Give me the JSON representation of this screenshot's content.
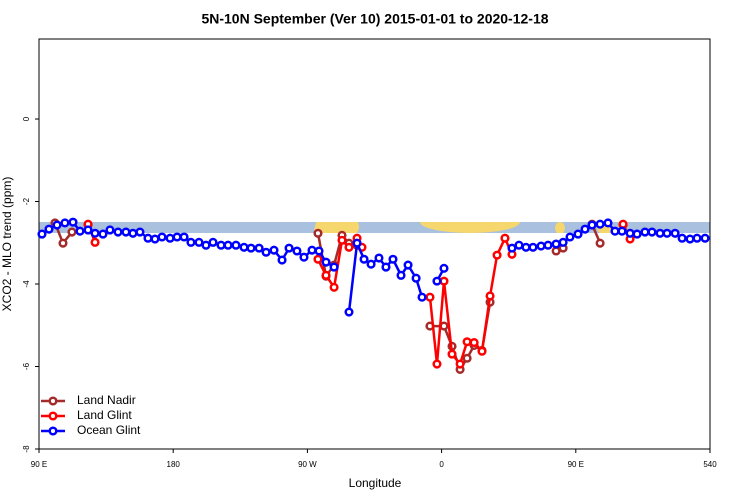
{
  "chart_data": {
    "type": "line",
    "title": "5N-10N September (Ver 10)   2015-01-01 to 2020-12-18",
    "x_label": "Longitude",
    "y_label": "XCO2 - MLO trend (ppm)",
    "xlim": [
      90,
      540
    ],
    "ylim": [
      -8,
      1.94
    ],
    "xticks": [
      {
        "value": 90,
        "label": "90 E"
      },
      180,
      {
        "value": 270,
        "label": "90 W"
      },
      {
        "value": 360,
        "label": "0"
      },
      {
        "value": 450,
        "label": "90 E"
      },
      540
    ],
    "yticks": [
      0,
      -2,
      -4,
      -6,
      -8
    ],
    "legend": "bottomleft",
    "series": [
      {
        "name": "Land Nadir",
        "color": "#a52a2a",
        "x": [
          100.7,
          106.1,
          112.1,
          115,
          122.9,
          200,
          277.1,
          282.5,
          287.9,
          293.2,
          297.9,
          303.3,
          330,
          352.2,
          361.6,
          367.0,
          372.4,
          377.1,
          381.8,
          387.1,
          392.5,
          420,
          436.8,
          441.5,
          450,
          460.9,
          466.3,
          470,
          481.7
        ],
        "values": [
          -2.52,
          -3.01,
          -2.74,
          null,
          -2.57,
          null,
          -2.77,
          -3.81,
          -3.54,
          -2.82,
          -3.01,
          -3.06,
          null,
          -5.02,
          -5.02,
          -5.51,
          -6.07,
          -5.8,
          -5.49,
          -5.61,
          -4.44,
          null,
          -3.2,
          -3.13,
          null,
          -2.55,
          -3.01,
          null,
          -2.57
        ]
      },
      {
        "name": "Land Glint",
        "color": "#ff0000",
        "x": [
          122.9,
          127.6,
          200,
          277.1,
          282.5,
          287.9,
          293.2,
          297.9,
          303.3,
          306.6,
          330,
          352.2,
          356.9,
          361.6,
          367.0,
          372.4,
          377.1,
          381.8,
          387.1,
          392.5,
          397.2,
          402.5,
          407.2,
          450,
          481.7,
          486.4
        ],
        "values": [
          -2.55,
          -2.99,
          null,
          -3.4,
          -3.79,
          -4.08,
          -2.94,
          -3.11,
          -2.89,
          -3.11,
          null,
          -4.32,
          -5.94,
          -3.93,
          -5.7,
          -5.94,
          -5.4,
          -5.42,
          -5.63,
          -4.29,
          -3.3,
          -2.89,
          -3.28,
          null,
          -2.55,
          -2.91
        ]
      },
      {
        "name": "Ocean Glint",
        "color": "#0000ff",
        "x": [
          92.0,
          96.7,
          102.1,
          107.4,
          112.8,
          117.5,
          122.9,
          127.6,
          132.9,
          137.6,
          143.0,
          148.3,
          153.0,
          157.7,
          163.1,
          167.8,
          172.5,
          177.9,
          182.6,
          187.3,
          191.9,
          197.3,
          202.0,
          206.7,
          212.1,
          216.8,
          222.1,
          227.5,
          232.2,
          237.6,
          242.3,
          247.6,
          253.0,
          257.7,
          263.0,
          267.7,
          273.1,
          277.8,
          282.5,
          287.9,
          293,
          297.9,
          303.3,
          308.0,
          312.7,
          318.0,
          322.7,
          327.4,
          332.8,
          337.5,
          342.9,
          346.9,
          352,
          356.9,
          361.6,
          385,
          407.2,
          411.9,
          416.6,
          421.3,
          426.7,
          431.4,
          436.8,
          441.5,
          446.1,
          451.5,
          456.2,
          460.9,
          466.3,
          471.6,
          476.3,
          481.0,
          486.4,
          491.1,
          496.4,
          501.1,
          506.5,
          511.2,
          516.6,
          521.3,
          526.6,
          531.3,
          536.7
        ],
        "values": [
          -2.79,
          -2.67,
          -2.57,
          -2.52,
          -2.5,
          -2.72,
          -2.69,
          -2.77,
          -2.79,
          -2.69,
          -2.74,
          -2.74,
          -2.77,
          -2.74,
          -2.89,
          -2.91,
          -2.86,
          -2.89,
          -2.86,
          -2.86,
          -2.99,
          -2.99,
          -3.06,
          -2.99,
          -3.06,
          -3.06,
          -3.06,
          -3.11,
          -3.13,
          -3.13,
          -3.23,
          -3.18,
          -3.42,
          -3.13,
          -3.2,
          -3.35,
          -3.18,
          -3.2,
          -3.47,
          -3.59,
          null,
          -4.68,
          -3.01,
          -3.4,
          -3.52,
          -3.37,
          -3.59,
          -3.4,
          -3.79,
          -3.54,
          -3.86,
          -4.32,
          null,
          -3.93,
          -3.62,
          null,
          -3.13,
          -3.06,
          -3.11,
          -3.11,
          -3.08,
          -3.06,
          -3.03,
          -2.99,
          -2.86,
          -2.79,
          -2.67,
          -2.57,
          -2.55,
          -2.52,
          -2.72,
          -2.72,
          -2.77,
          -2.79,
          -2.74,
          -2.74,
          -2.77,
          -2.77,
          -2.77,
          -2.89,
          -2.91,
          -2.89,
          -2.89
        ]
      }
    ]
  }
}
